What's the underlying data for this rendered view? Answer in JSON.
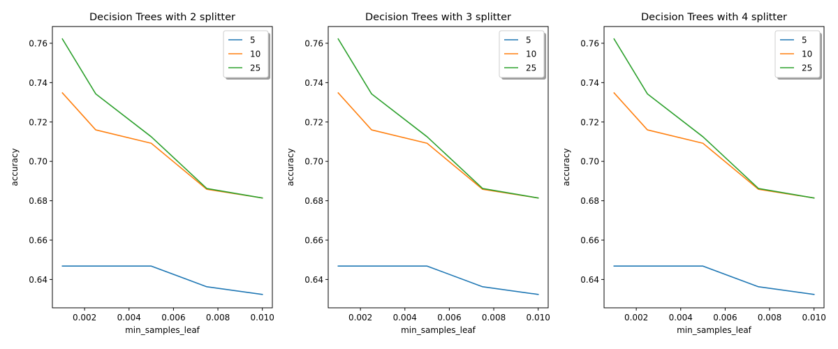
{
  "figure": {
    "background": "#ffffff"
  },
  "chart_data": [
    {
      "type": "line",
      "title": "Decision Trees with 2 splitter",
      "xlabel": "min_samples_leaf",
      "ylabel": "accuracy",
      "x": [
        0.001,
        0.0025,
        0.005,
        0.0075,
        0.01
      ],
      "xlim": [
        0.00055,
        0.01045
      ],
      "ylim": [
        0.6256,
        0.7685
      ],
      "xticks": [
        0.002,
        0.004,
        0.006,
        0.008,
        0.01
      ],
      "xtick_labels": [
        "0.002",
        "0.004",
        "0.006",
        "0.008",
        "0.010"
      ],
      "yticks": [
        0.64,
        0.66,
        0.68,
        0.7,
        0.72,
        0.74,
        0.76
      ],
      "ytick_labels": [
        "0.64",
        "0.66",
        "0.68",
        "0.70",
        "0.72",
        "0.74",
        "0.76"
      ],
      "grid": false,
      "legend_position": "top-right",
      "series": [
        {
          "name": "5",
          "color": "#1f77b4",
          "values": [
            0.6468,
            0.6468,
            0.6468,
            0.6363,
            0.6324
          ]
        },
        {
          "name": "10",
          "color": "#ff7f0e",
          "values": [
            0.7348,
            0.716,
            0.7092,
            0.6858,
            0.6814
          ]
        },
        {
          "name": "25",
          "color": "#2ca02c",
          "values": [
            0.7622,
            0.7343,
            0.7125,
            0.6862,
            0.6814
          ]
        }
      ]
    },
    {
      "type": "line",
      "title": "Decision Trees with 3 splitter",
      "xlabel": "min_samples_leaf",
      "ylabel": "accuracy",
      "x": [
        0.001,
        0.0025,
        0.005,
        0.0075,
        0.01
      ],
      "xlim": [
        0.00055,
        0.01045
      ],
      "ylim": [
        0.6256,
        0.7685
      ],
      "xticks": [
        0.002,
        0.004,
        0.006,
        0.008,
        0.01
      ],
      "xtick_labels": [
        "0.002",
        "0.004",
        "0.006",
        "0.008",
        "0.010"
      ],
      "yticks": [
        0.64,
        0.66,
        0.68,
        0.7,
        0.72,
        0.74,
        0.76
      ],
      "ytick_labels": [
        "0.64",
        "0.66",
        "0.68",
        "0.70",
        "0.72",
        "0.74",
        "0.76"
      ],
      "grid": false,
      "legend_position": "top-right",
      "series": [
        {
          "name": "5",
          "color": "#1f77b4",
          "values": [
            0.6468,
            0.6468,
            0.6468,
            0.6363,
            0.6324
          ]
        },
        {
          "name": "10",
          "color": "#ff7f0e",
          "values": [
            0.7348,
            0.716,
            0.7092,
            0.6858,
            0.6814
          ]
        },
        {
          "name": "25",
          "color": "#2ca02c",
          "values": [
            0.7622,
            0.7343,
            0.7125,
            0.6862,
            0.6814
          ]
        }
      ]
    },
    {
      "type": "line",
      "title": "Decision Trees with 4 splitter",
      "xlabel": "min_samples_leaf",
      "ylabel": "accuracy",
      "x": [
        0.001,
        0.0025,
        0.005,
        0.0075,
        0.01
      ],
      "xlim": [
        0.00055,
        0.01045
      ],
      "ylim": [
        0.6256,
        0.7685
      ],
      "xticks": [
        0.002,
        0.004,
        0.006,
        0.008,
        0.01
      ],
      "xtick_labels": [
        "0.002",
        "0.004",
        "0.006",
        "0.008",
        "0.010"
      ],
      "yticks": [
        0.64,
        0.66,
        0.68,
        0.7,
        0.72,
        0.74,
        0.76
      ],
      "ytick_labels": [
        "0.64",
        "0.66",
        "0.68",
        "0.70",
        "0.72",
        "0.74",
        "0.76"
      ],
      "grid": false,
      "legend_position": "top-right",
      "series": [
        {
          "name": "5",
          "color": "#1f77b4",
          "values": [
            0.6468,
            0.6468,
            0.6468,
            0.6363,
            0.6324
          ]
        },
        {
          "name": "10",
          "color": "#ff7f0e",
          "values": [
            0.7348,
            0.716,
            0.7092,
            0.6858,
            0.6814
          ]
        },
        {
          "name": "25",
          "color": "#2ca02c",
          "values": [
            0.7622,
            0.7343,
            0.7125,
            0.6862,
            0.6814
          ]
        }
      ]
    }
  ]
}
